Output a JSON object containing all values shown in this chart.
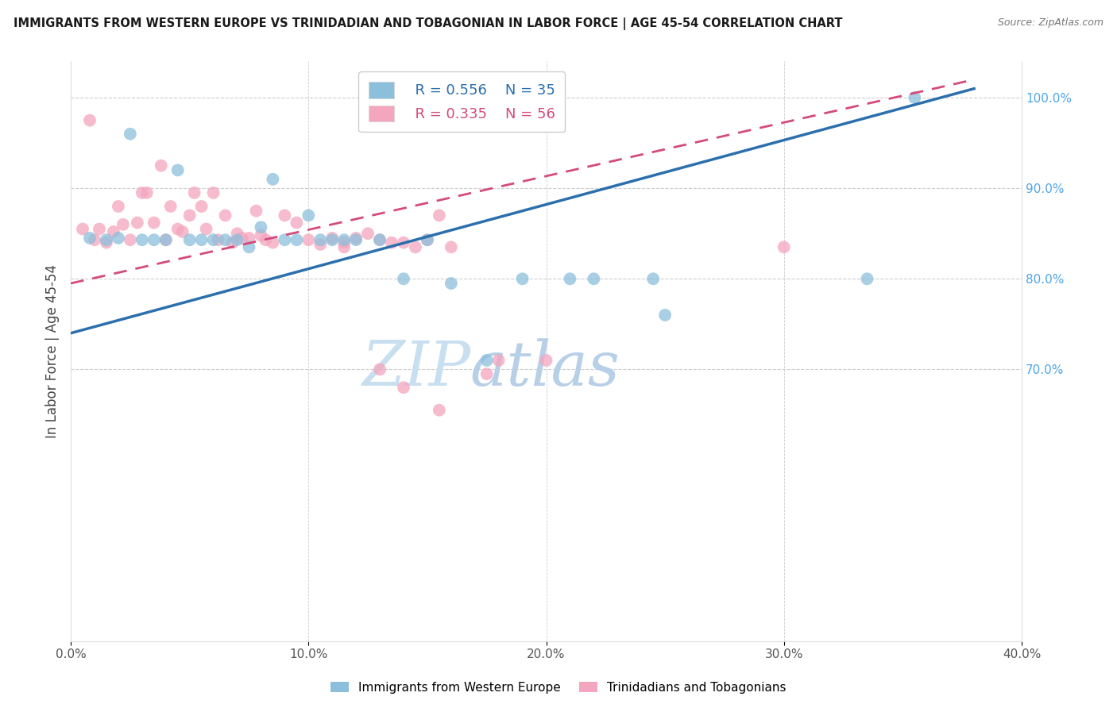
{
  "title": "IMMIGRANTS FROM WESTERN EUROPE VS TRINIDADIAN AND TOBAGONIAN IN LABOR FORCE | AGE 45-54 CORRELATION CHART",
  "source": "Source: ZipAtlas.com",
  "ylabel": "In Labor Force | Age 45-54",
  "xlim": [
    0.0,
    0.4
  ],
  "ylim": [
    0.4,
    1.04
  ],
  "legend_blue_R": "R = 0.556",
  "legend_blue_N": "N = 35",
  "legend_pink_R": "R = 0.335",
  "legend_pink_N": "N = 56",
  "blue_color": "#8bbfdb",
  "pink_color": "#f4a6be",
  "blue_line_color": "#2c6fad",
  "pink_line_color": "#d44b7a",
  "right_axis_color": "#4da6e8",
  "watermark_zip": "ZIP",
  "watermark_atlas": "atlas",
  "watermark_color": "#cde5f5",
  "blue_line_x0": 0.0,
  "blue_line_y0": 0.74,
  "blue_line_x1": 0.38,
  "blue_line_y1": 1.01,
  "pink_line_x0": 0.0,
  "pink_line_y0": 0.795,
  "pink_line_x1": 0.38,
  "pink_line_y1": 1.02,
  "blue_scatter_x": [
    0.008,
    0.015,
    0.02,
    0.025,
    0.03,
    0.035,
    0.04,
    0.045,
    0.05,
    0.055,
    0.06,
    0.065,
    0.07,
    0.075,
    0.08,
    0.085,
    0.09,
    0.095,
    0.1,
    0.105,
    0.11,
    0.115,
    0.12,
    0.13,
    0.14,
    0.15,
    0.16,
    0.175,
    0.19,
    0.21,
    0.22,
    0.245,
    0.25,
    0.335,
    0.355
  ],
  "blue_scatter_y": [
    0.845,
    0.843,
    0.845,
    0.96,
    0.843,
    0.843,
    0.843,
    0.92,
    0.843,
    0.843,
    0.843,
    0.843,
    0.843,
    0.835,
    0.857,
    0.91,
    0.843,
    0.843,
    0.87,
    0.843,
    0.843,
    0.843,
    0.843,
    0.843,
    0.8,
    0.843,
    0.795,
    0.71,
    0.8,
    0.8,
    0.8,
    0.8,
    0.76,
    0.8,
    1.0
  ],
  "pink_scatter_x": [
    0.005,
    0.008,
    0.01,
    0.012,
    0.015,
    0.018,
    0.02,
    0.022,
    0.025,
    0.028,
    0.03,
    0.032,
    0.035,
    0.038,
    0.04,
    0.042,
    0.045,
    0.047,
    0.05,
    0.052,
    0.055,
    0.057,
    0.06,
    0.062,
    0.065,
    0.068,
    0.07,
    0.072,
    0.075,
    0.078,
    0.08,
    0.082,
    0.085,
    0.09,
    0.095,
    0.1,
    0.105,
    0.11,
    0.115,
    0.12,
    0.125,
    0.13,
    0.135,
    0.14,
    0.145,
    0.15,
    0.155,
    0.16,
    0.18,
    0.2,
    0.115,
    0.13,
    0.14,
    0.155,
    0.175,
    0.3
  ],
  "pink_scatter_y": [
    0.855,
    0.975,
    0.843,
    0.855,
    0.84,
    0.852,
    0.88,
    0.86,
    0.843,
    0.862,
    0.895,
    0.895,
    0.862,
    0.925,
    0.843,
    0.88,
    0.855,
    0.852,
    0.87,
    0.895,
    0.88,
    0.855,
    0.895,
    0.843,
    0.87,
    0.84,
    0.85,
    0.845,
    0.845,
    0.875,
    0.848,
    0.843,
    0.84,
    0.87,
    0.862,
    0.843,
    0.838,
    0.845,
    0.84,
    0.845,
    0.85,
    0.843,
    0.84,
    0.84,
    0.835,
    0.843,
    0.87,
    0.835,
    0.71,
    0.71,
    0.835,
    0.7,
    0.68,
    0.655,
    0.695,
    0.835
  ]
}
